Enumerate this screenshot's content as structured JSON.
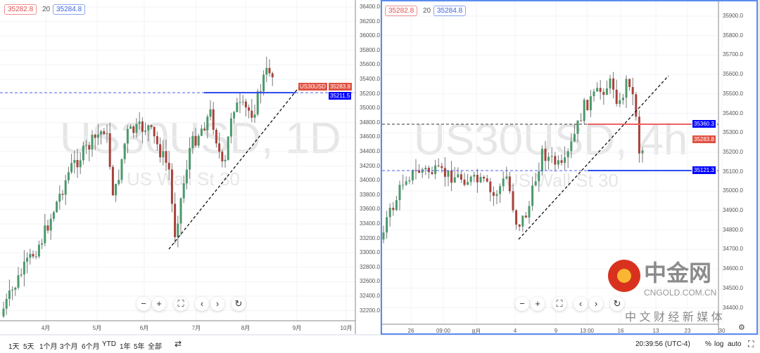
{
  "left_chart": {
    "symbol_watermark": "US30USD, 1D",
    "desc_watermark": "US Wall St 30",
    "bid": "35282.8",
    "spread": "20",
    "ask": "35284.8",
    "y_ticks": [
      "36400.0",
      "36200.0",
      "36000.0",
      "35800.0",
      "35600.0",
      "35400.0",
      "35200.0",
      "35000.0",
      "34800.0",
      "34600.0",
      "34400.0",
      "34200.0",
      "34000.0",
      "33800.0",
      "33600.0",
      "33400.0",
      "33200.0",
      "33000.0",
      "32800.0",
      "32600.0",
      "32400.0",
      "32200.0"
    ],
    "x_ticks": [
      "4月",
      "5月",
      "6月",
      "7月",
      "8月",
      "9月",
      "10月"
    ],
    "symbol_label": "US30USD",
    "last_price": "35283.8",
    "line_price": "35211.5"
  },
  "right_chart": {
    "symbol_watermark": "US30USD, 4h",
    "desc_watermark": "US Wall St 30",
    "bid": "35282.8",
    "spread": "20",
    "ask": "35284.8",
    "y_ticks": [
      "35900.0",
      "35800.0",
      "35700.0",
      "35600.0",
      "35500.0",
      "35400.0",
      "35300.0",
      "35200.0",
      "35100.0",
      "35000.0",
      "34900.0",
      "34800.0",
      "34700.0",
      "34600.0",
      "34500.0",
      "34400.0"
    ],
    "x_ticks": [
      "26",
      "09:00",
      "8月",
      "4",
      "9",
      "13:00",
      "16",
      "13",
      "23",
      "30"
    ],
    "line_price_1": "35360.3",
    "last_price": "35283.8",
    "line_price_2": "35121.3"
  },
  "controls": {
    "zoom_out": "−",
    "zoom_in": "+",
    "reset": "⛶",
    "prev": "‹",
    "next": "›",
    "refresh": "↻"
  },
  "bottom_bar": {
    "ranges": [
      "1天",
      "5天",
      "1个月",
      "3个月",
      "6个月",
      "YTD",
      "1年",
      "5年",
      "全部"
    ],
    "time": "20:39:56 (UTC-4)",
    "percent": "%",
    "log": "log",
    "auto": "auto"
  },
  "watermark": {
    "brand": "中金网",
    "domain": "CNGOLD.COM.CN",
    "slogan": "中 文 财 经 新 媒 体"
  },
  "colors": {
    "up": "#4a9a6a",
    "down": "#a8413a",
    "accent": "#5a8cf0",
    "price_red": "#e05040",
    "line_blue": "#0000ff"
  }
}
